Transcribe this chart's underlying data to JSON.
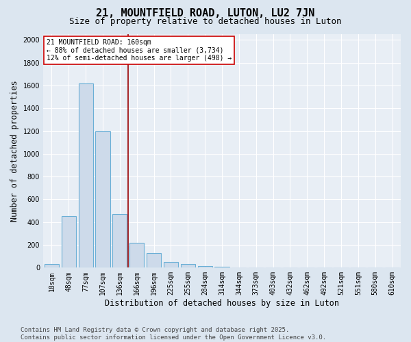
{
  "title": "21, MOUNTFIELD ROAD, LUTON, LU2 7JN",
  "subtitle": "Size of property relative to detached houses in Luton",
  "xlabel": "Distribution of detached houses by size in Luton",
  "ylabel": "Number of detached properties",
  "categories": [
    "18sqm",
    "48sqm",
    "77sqm",
    "107sqm",
    "136sqm",
    "166sqm",
    "196sqm",
    "225sqm",
    "255sqm",
    "284sqm",
    "314sqm",
    "344sqm",
    "373sqm",
    "403sqm",
    "432sqm",
    "462sqm",
    "492sqm",
    "521sqm",
    "551sqm",
    "580sqm",
    "610sqm"
  ],
  "values": [
    30,
    450,
    1620,
    1200,
    470,
    220,
    130,
    50,
    30,
    15,
    10,
    0,
    0,
    0,
    0,
    0,
    0,
    0,
    0,
    0,
    0
  ],
  "bar_color": "#cddaea",
  "bar_edge_color": "#6aafd6",
  "bar_linewidth": 0.8,
  "vline_x": 5,
  "vline_color": "#990000",
  "annotation_text": "21 MOUNTFIELD ROAD: 160sqm\n← 88% of detached houses are smaller (3,734)\n12% of semi-detached houses are larger (498) →",
  "annotation_box_color": "#ffffff",
  "annotation_box_edge": "#cc0000",
  "ylim": [
    0,
    2050
  ],
  "yticks": [
    0,
    200,
    400,
    600,
    800,
    1000,
    1200,
    1400,
    1600,
    1800,
    2000
  ],
  "background_color": "#dce6f0",
  "plot_bg_color": "#e8eef5",
  "grid_color": "#ffffff",
  "footer": "Contains HM Land Registry data © Crown copyright and database right 2025.\nContains public sector information licensed under the Open Government Licence v3.0.",
  "title_fontsize": 11,
  "subtitle_fontsize": 9,
  "axis_label_fontsize": 8.5,
  "tick_fontsize": 7,
  "annotation_fontsize": 7,
  "footer_fontsize": 6.5
}
